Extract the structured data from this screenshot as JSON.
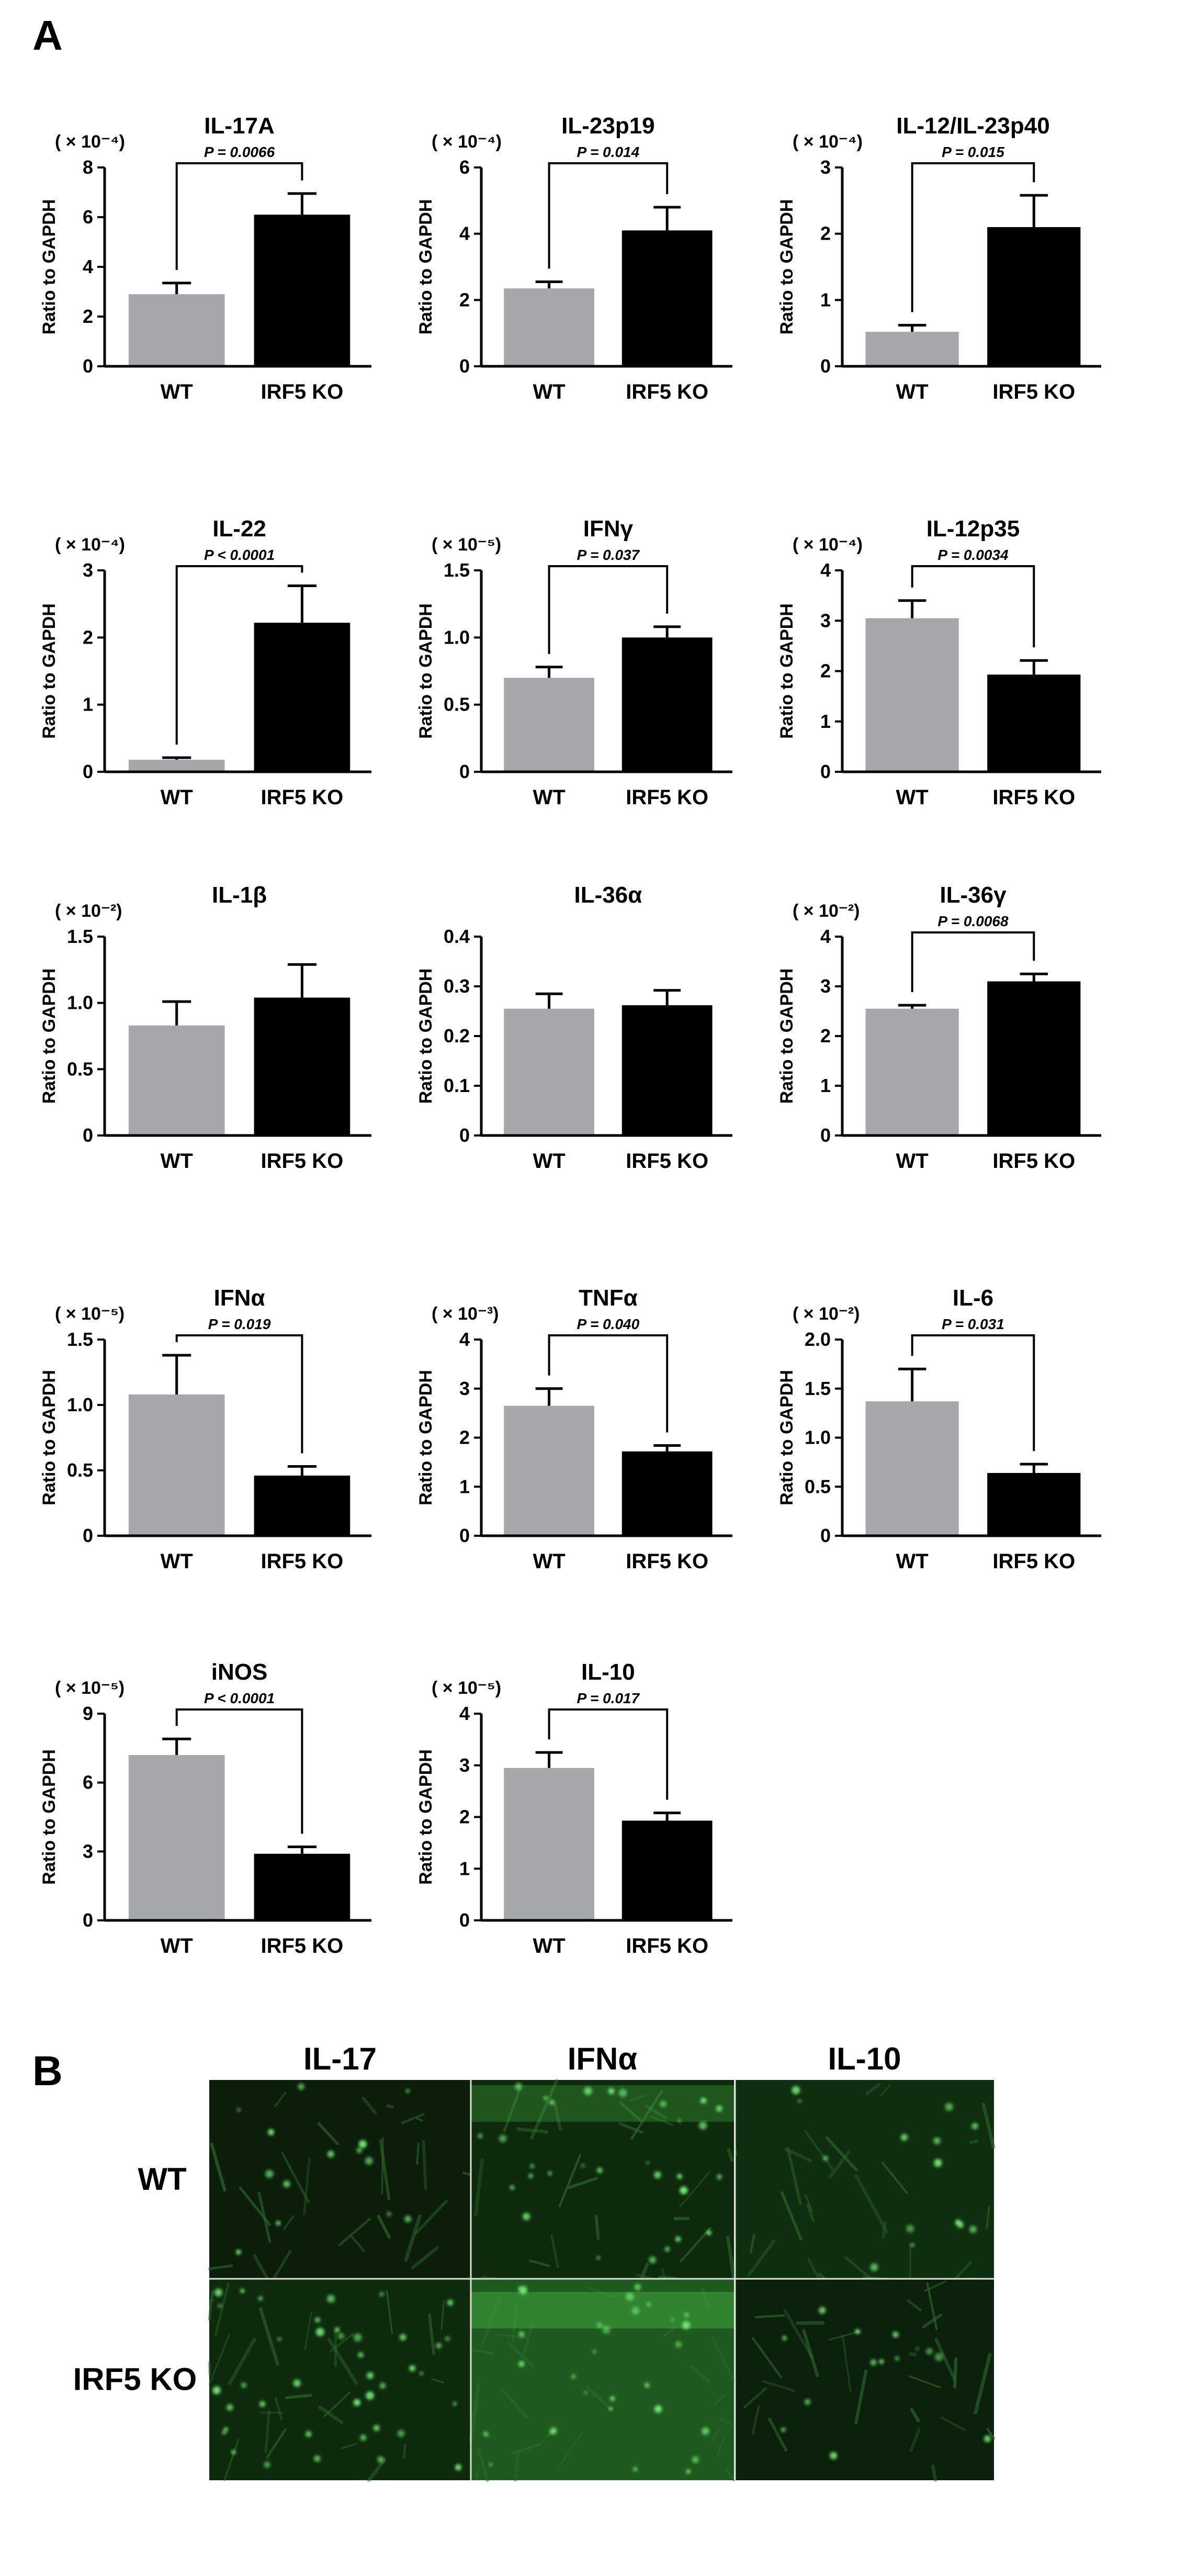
{
  "panel_a_label": "A",
  "panel_b_label": "B",
  "common": {
    "ylabel": "Ratio to GAPDH",
    "wt_label": "WT",
    "ko_label": "IRF5 KO",
    "wt_color": "#a6a7a9",
    "ko_color": "#000000"
  },
  "chart_data": [
    {
      "type": "bar",
      "title": "IL-17A",
      "multiplier": "( × 10⁻⁴)",
      "ylabel": "Ratio to GAPDH",
      "categories": [
        "WT",
        "IRF5 KO"
      ],
      "values": [
        2.9,
        6.1
      ],
      "errors": [
        0.45,
        0.85
      ],
      "ylim": [
        0,
        8
      ],
      "yticks": [
        "0",
        "2",
        "4",
        "6",
        "8"
      ],
      "pvalue": "P = 0.0066"
    },
    {
      "type": "bar",
      "title": "IL-23p19",
      "multiplier": "( × 10⁻⁴)",
      "ylabel": "Ratio to GAPDH",
      "categories": [
        "WT",
        "IRF5 KO"
      ],
      "values": [
        2.35,
        4.1
      ],
      "errors": [
        0.2,
        0.7
      ],
      "ylim": [
        0,
        6
      ],
      "yticks": [
        "0",
        "2",
        "4",
        "6"
      ],
      "pvalue": "P = 0.014"
    },
    {
      "type": "bar",
      "title": "IL-12/IL-23p40",
      "multiplier": "( × 10⁻⁴)",
      "ylabel": "Ratio to GAPDH",
      "categories": [
        "WT",
        "IRF5 KO"
      ],
      "values": [
        0.52,
        2.1
      ],
      "errors": [
        0.1,
        0.48
      ],
      "ylim": [
        0,
        3
      ],
      "yticks": [
        "0",
        "1",
        "2",
        "3"
      ],
      "pvalue": "P = 0.015"
    },
    {
      "type": "bar",
      "title": "IL-22",
      "multiplier": "( × 10⁻⁴)",
      "ylabel": "Ratio to GAPDH",
      "categories": [
        "WT",
        "IRF5 KO"
      ],
      "values": [
        0.18,
        2.22
      ],
      "errors": [
        0.03,
        0.55
      ],
      "ylim": [
        0,
        3
      ],
      "yticks": [
        "0",
        "1",
        "2",
        "3"
      ],
      "pvalue": "P < 0.0001"
    },
    {
      "type": "bar",
      "title": "IFNγ",
      "multiplier": "( × 10⁻⁵)",
      "ylabel": "Ratio to GAPDH",
      "categories": [
        "WT",
        "IRF5 KO"
      ],
      "values": [
        0.7,
        1.0
      ],
      "errors": [
        0.08,
        0.08
      ],
      "ylim": [
        0,
        1.5
      ],
      "yticks": [
        "0",
        "0.5",
        "1.0",
        "1.5"
      ],
      "pvalue": "P = 0.037"
    },
    {
      "type": "bar",
      "title": "IL-12p35",
      "multiplier": "( × 10⁻⁴)",
      "ylabel": "Ratio to GAPDH",
      "categories": [
        "WT",
        "IRF5 KO"
      ],
      "values": [
        3.05,
        1.93
      ],
      "errors": [
        0.35,
        0.28
      ],
      "ylim": [
        0,
        4
      ],
      "yticks": [
        "0",
        "1",
        "2",
        "3",
        "4"
      ],
      "pvalue": "P = 0.0034"
    },
    {
      "type": "bar",
      "title": "IL-1β",
      "multiplier": "( × 10⁻²)",
      "ylabel": "Ratio to GAPDH",
      "categories": [
        "WT",
        "IRF5 KO"
      ],
      "values": [
        0.83,
        1.04
      ],
      "errors": [
        0.18,
        0.25
      ],
      "ylim": [
        0,
        1.5
      ],
      "yticks": [
        "0",
        "0.5",
        "1.0",
        "1.5"
      ],
      "pvalue": ""
    },
    {
      "type": "bar",
      "title": "IL-36α",
      "multiplier": "",
      "ylabel": "Ratio to GAPDH",
      "categories": [
        "WT",
        "IRF5 KO"
      ],
      "values": [
        0.255,
        0.262
      ],
      "errors": [
        0.03,
        0.03
      ],
      "ylim": [
        0,
        0.4
      ],
      "yticks": [
        "0",
        "0.1",
        "0.2",
        "0.3",
        "0.4"
      ],
      "pvalue": ""
    },
    {
      "type": "bar",
      "title": "IL-36γ",
      "multiplier": "( × 10⁻²)",
      "ylabel": "Ratio to GAPDH",
      "categories": [
        "WT",
        "IRF5 KO"
      ],
      "values": [
        2.55,
        3.1
      ],
      "errors": [
        0.07,
        0.15
      ],
      "ylim": [
        0,
        4
      ],
      "yticks": [
        "0",
        "1",
        "2",
        "3",
        "4"
      ],
      "pvalue": "P = 0.0068"
    },
    {
      "type": "bar",
      "title": "IFNα",
      "multiplier": "( × 10⁻⁵)",
      "ylabel": "Ratio to GAPDH",
      "categories": [
        "WT",
        "IRF5 KO"
      ],
      "values": [
        1.08,
        0.46
      ],
      "errors": [
        0.3,
        0.07
      ],
      "ylim": [
        0,
        1.5
      ],
      "yticks": [
        "0",
        "0.5",
        "1.0",
        "1.5"
      ],
      "pvalue": "P = 0.019"
    },
    {
      "type": "bar",
      "title": "TNFα",
      "multiplier": "( × 10⁻³)",
      "ylabel": "Ratio to GAPDH",
      "categories": [
        "WT",
        "IRF5 KO"
      ],
      "values": [
        2.65,
        1.72
      ],
      "errors": [
        0.35,
        0.12
      ],
      "ylim": [
        0,
        4
      ],
      "yticks": [
        "0",
        "1",
        "2",
        "3",
        "4"
      ],
      "pvalue": "P = 0.040"
    },
    {
      "type": "bar",
      "title": "IL-6",
      "multiplier": "( × 10⁻²)",
      "ylabel": "Ratio to GAPDH",
      "categories": [
        "WT",
        "IRF5 KO"
      ],
      "values": [
        1.37,
        0.64
      ],
      "errors": [
        0.33,
        0.09
      ],
      "ylim": [
        0,
        2
      ],
      "yticks": [
        "0",
        "0.5",
        "1.0",
        "1.5",
        "2.0"
      ],
      "pvalue": "P = 0.031"
    },
    {
      "type": "bar",
      "title": "iNOS",
      "multiplier": "( × 10⁻⁵)",
      "ylabel": "Ratio to GAPDH",
      "categories": [
        "WT",
        "IRF5 KO"
      ],
      "values": [
        7.2,
        2.9
      ],
      "errors": [
        0.7,
        0.3
      ],
      "ylim": [
        0,
        9
      ],
      "yticks": [
        "0",
        "3",
        "6",
        "9"
      ],
      "pvalue": "P < 0.0001"
    },
    {
      "type": "bar",
      "title": "IL-10",
      "multiplier": "( × 10⁻⁵)",
      "ylabel": "Ratio to GAPDH",
      "categories": [
        "WT",
        "IRF5 KO"
      ],
      "values": [
        2.95,
        1.93
      ],
      "errors": [
        0.3,
        0.15
      ],
      "ylim": [
        0,
        4
      ],
      "yticks": [
        "0",
        "1",
        "2",
        "3",
        "4"
      ],
      "pvalue": "P = 0.017"
    }
  ],
  "panel_b": {
    "columns": [
      "IL-17",
      "IFNα",
      "IL-10"
    ],
    "rows": [
      "WT",
      "IRF5 KO"
    ]
  }
}
